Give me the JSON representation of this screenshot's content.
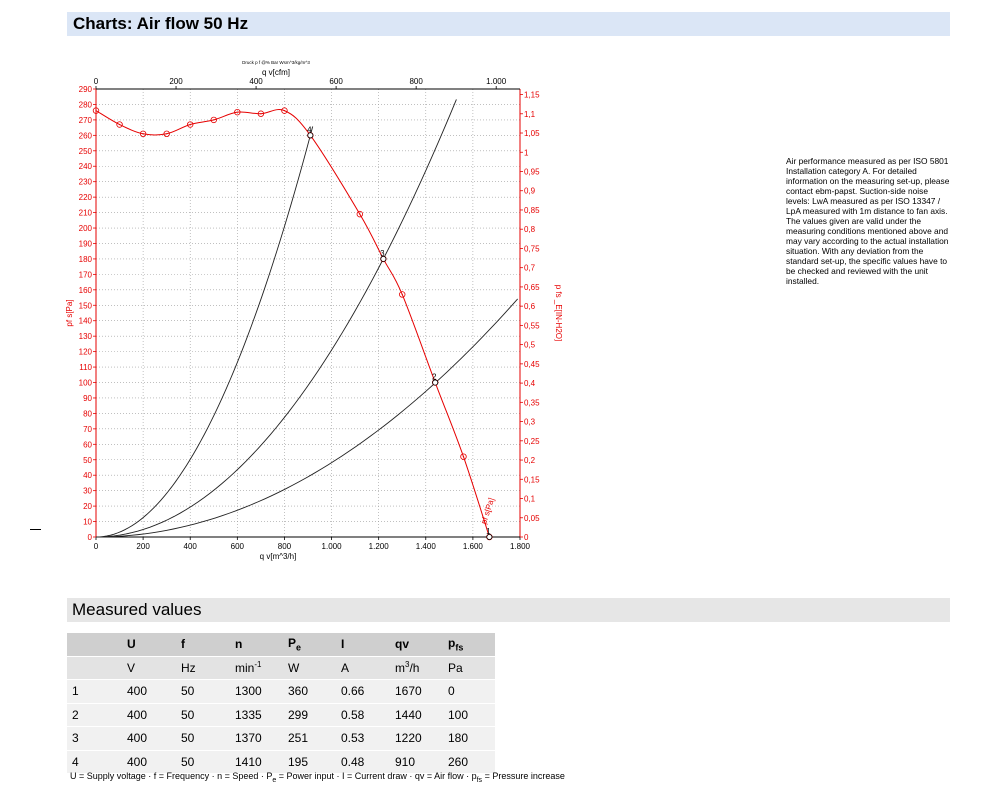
{
  "header": {
    "title": "Charts: Air flow 50 Hz"
  },
  "description": "Air performance measured as per ISO 5801 Installation category A. For detailed information on the measuring set-up, please contact ebm-papst. Suction-side noise levels: LwA measured as per ISO 13347 / LpA measured with 1m distance to fan axis. The values given are valid under the measuring conditions mentioned above and may vary according to the actual installation situation. With any deviation from the standard set-up, the specific values have to be checked and reviewed with the unit installed.",
  "measured": {
    "title": "Measured values",
    "columns": [
      "",
      "U",
      "f",
      "n",
      "P_e",
      "I",
      "qv",
      "p_fs"
    ],
    "units": [
      "",
      "V",
      "Hz",
      "min-1",
      "W",
      "A",
      "m3/h",
      "Pa"
    ],
    "rows": [
      [
        "1",
        "400",
        "50",
        "1300",
        "360",
        "0.66",
        "1670",
        "0"
      ],
      [
        "2",
        "400",
        "50",
        "1335",
        "299",
        "0.58",
        "1440",
        "100"
      ],
      [
        "3",
        "400",
        "50",
        "1370",
        "251",
        "0.53",
        "1220",
        "180"
      ],
      [
        "4",
        "400",
        "50",
        "1410",
        "195",
        "0.48",
        "910",
        "260"
      ]
    ],
    "legend": "U = Supply voltage · f = Frequency · n = Speed · Pe = Power input · I = Current draw · qv = Air flow · pfs = Pressure increase"
  },
  "chart_data": {
    "type": "line",
    "title": "",
    "note_top": "Druck p f @% Bar Wsm^3/kg/m^3",
    "xlabel": "q v[m^3/h]",
    "x2label": "q v[cfm]",
    "ylabel": "pf s[Pa]",
    "y2label": "p fs _E[IN-H2O]",
    "xlim": [
      0,
      1800
    ],
    "ylim": [
      0,
      290
    ],
    "x2lim": [
      0,
      1059.5
    ],
    "y2lim": [
      0,
      1.1644
    ],
    "x_ticks": [
      "0",
      "200",
      "400",
      "600",
      "800",
      "1.000",
      "1.200",
      "1.400",
      "1.600",
      "1.800"
    ],
    "x2_ticks": [
      "0",
      "200",
      "400",
      "600",
      "800",
      "1.000"
    ],
    "y_ticks": [
      "0",
      "10",
      "20",
      "30",
      "40",
      "50",
      "60",
      "70",
      "80",
      "90",
      "100",
      "110",
      "120",
      "130",
      "140",
      "150",
      "160",
      "170",
      "180",
      "190",
      "200",
      "210",
      "220",
      "230",
      "240",
      "250",
      "260",
      "270",
      "280",
      "290"
    ],
    "y2_ticks": [
      "0",
      "0,05",
      "0,1",
      "0,15",
      "0,2",
      "0,25",
      "0,3",
      "0,35",
      "0,4",
      "0,45",
      "0,5",
      "0,55",
      "0,6",
      "0,65",
      "0,7",
      "0,75",
      "0,8",
      "0,85",
      "0,9",
      "0,95",
      "1",
      "1,05",
      "1,1",
      "1,15"
    ],
    "grid": true,
    "series": [
      {
        "name": "pf s[Pa]",
        "color": "#e60000",
        "x": [
          0,
          100,
          200,
          300,
          400,
          500,
          600,
          700,
          800,
          910,
          1120,
          1220,
          1300,
          1440,
          1560,
          1670
        ],
        "y": [
          276,
          267,
          261,
          261,
          267,
          270,
          275,
          274,
          276,
          260,
          209,
          180,
          157,
          100,
          52,
          0
        ]
      }
    ],
    "system_curves": [
      {
        "k": 0.000314,
        "x_end": 920
      },
      {
        "k": 0.000121,
        "x_end": 1530
      },
      {
        "k": 4.81e-05,
        "x_end": 1790
      }
    ],
    "operating_points": [
      {
        "label": "1",
        "x": 1670,
        "y": 0
      },
      {
        "label": "2",
        "x": 1440,
        "y": 100
      },
      {
        "label": "3",
        "x": 1220,
        "y": 180
      },
      {
        "label": "4",
        "x": 910,
        "y": 260
      }
    ],
    "curve_label": "pf s[Pa]"
  }
}
